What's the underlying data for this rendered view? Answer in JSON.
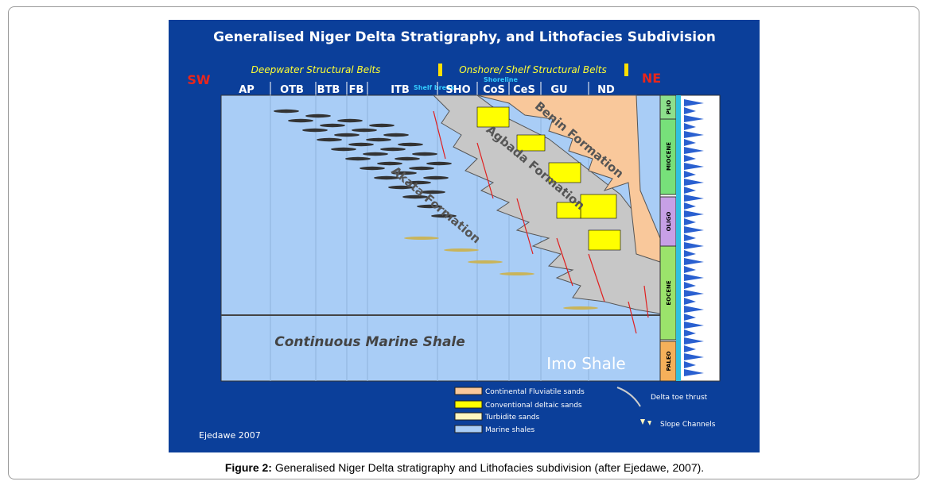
{
  "figure": {
    "title": "Generalised Niger Delta Stratigraphy, and Lithofacies Subdivision",
    "belt_groups": {
      "deepwater": "Deepwater Structural Belts",
      "onshore": "Onshore/ Shelf Structural Belts"
    },
    "directions": {
      "left": "SW",
      "right": "NE"
    },
    "belts": [
      "AP",
      "OTB",
      "BTB",
      "FB",
      "ITB",
      "SHO",
      "CoS",
      "CeS",
      "GU",
      "ND"
    ],
    "markers": {
      "shelf_break": "Shelf break",
      "shoreline": "Shoreline"
    },
    "formations": {
      "benin": "Benin Formation",
      "agbada": "Agbada Formation",
      "akata": "Akata Formation",
      "marine_shale": "Continuous Marine Shale",
      "imo": "Imo Shale"
    },
    "epochs": [
      "PLIO",
      "MIOCENE",
      "OLIGO",
      "EOCENE",
      "PALEO"
    ],
    "legend": [
      "Continental Fluviatile sands",
      "Conventional deltaic sands",
      "Turbidite sands",
      "Marine shales"
    ],
    "legend_symbols": [
      "Delta toe thrust",
      "Slope Channels"
    ],
    "credit": "Ejedawe 2007"
  },
  "caption": {
    "label": "Figure 2:",
    "text": "Generalised Niger Delta stratigraphy and Lithofacies subdivision (after Ejedawe, 2007)."
  }
}
